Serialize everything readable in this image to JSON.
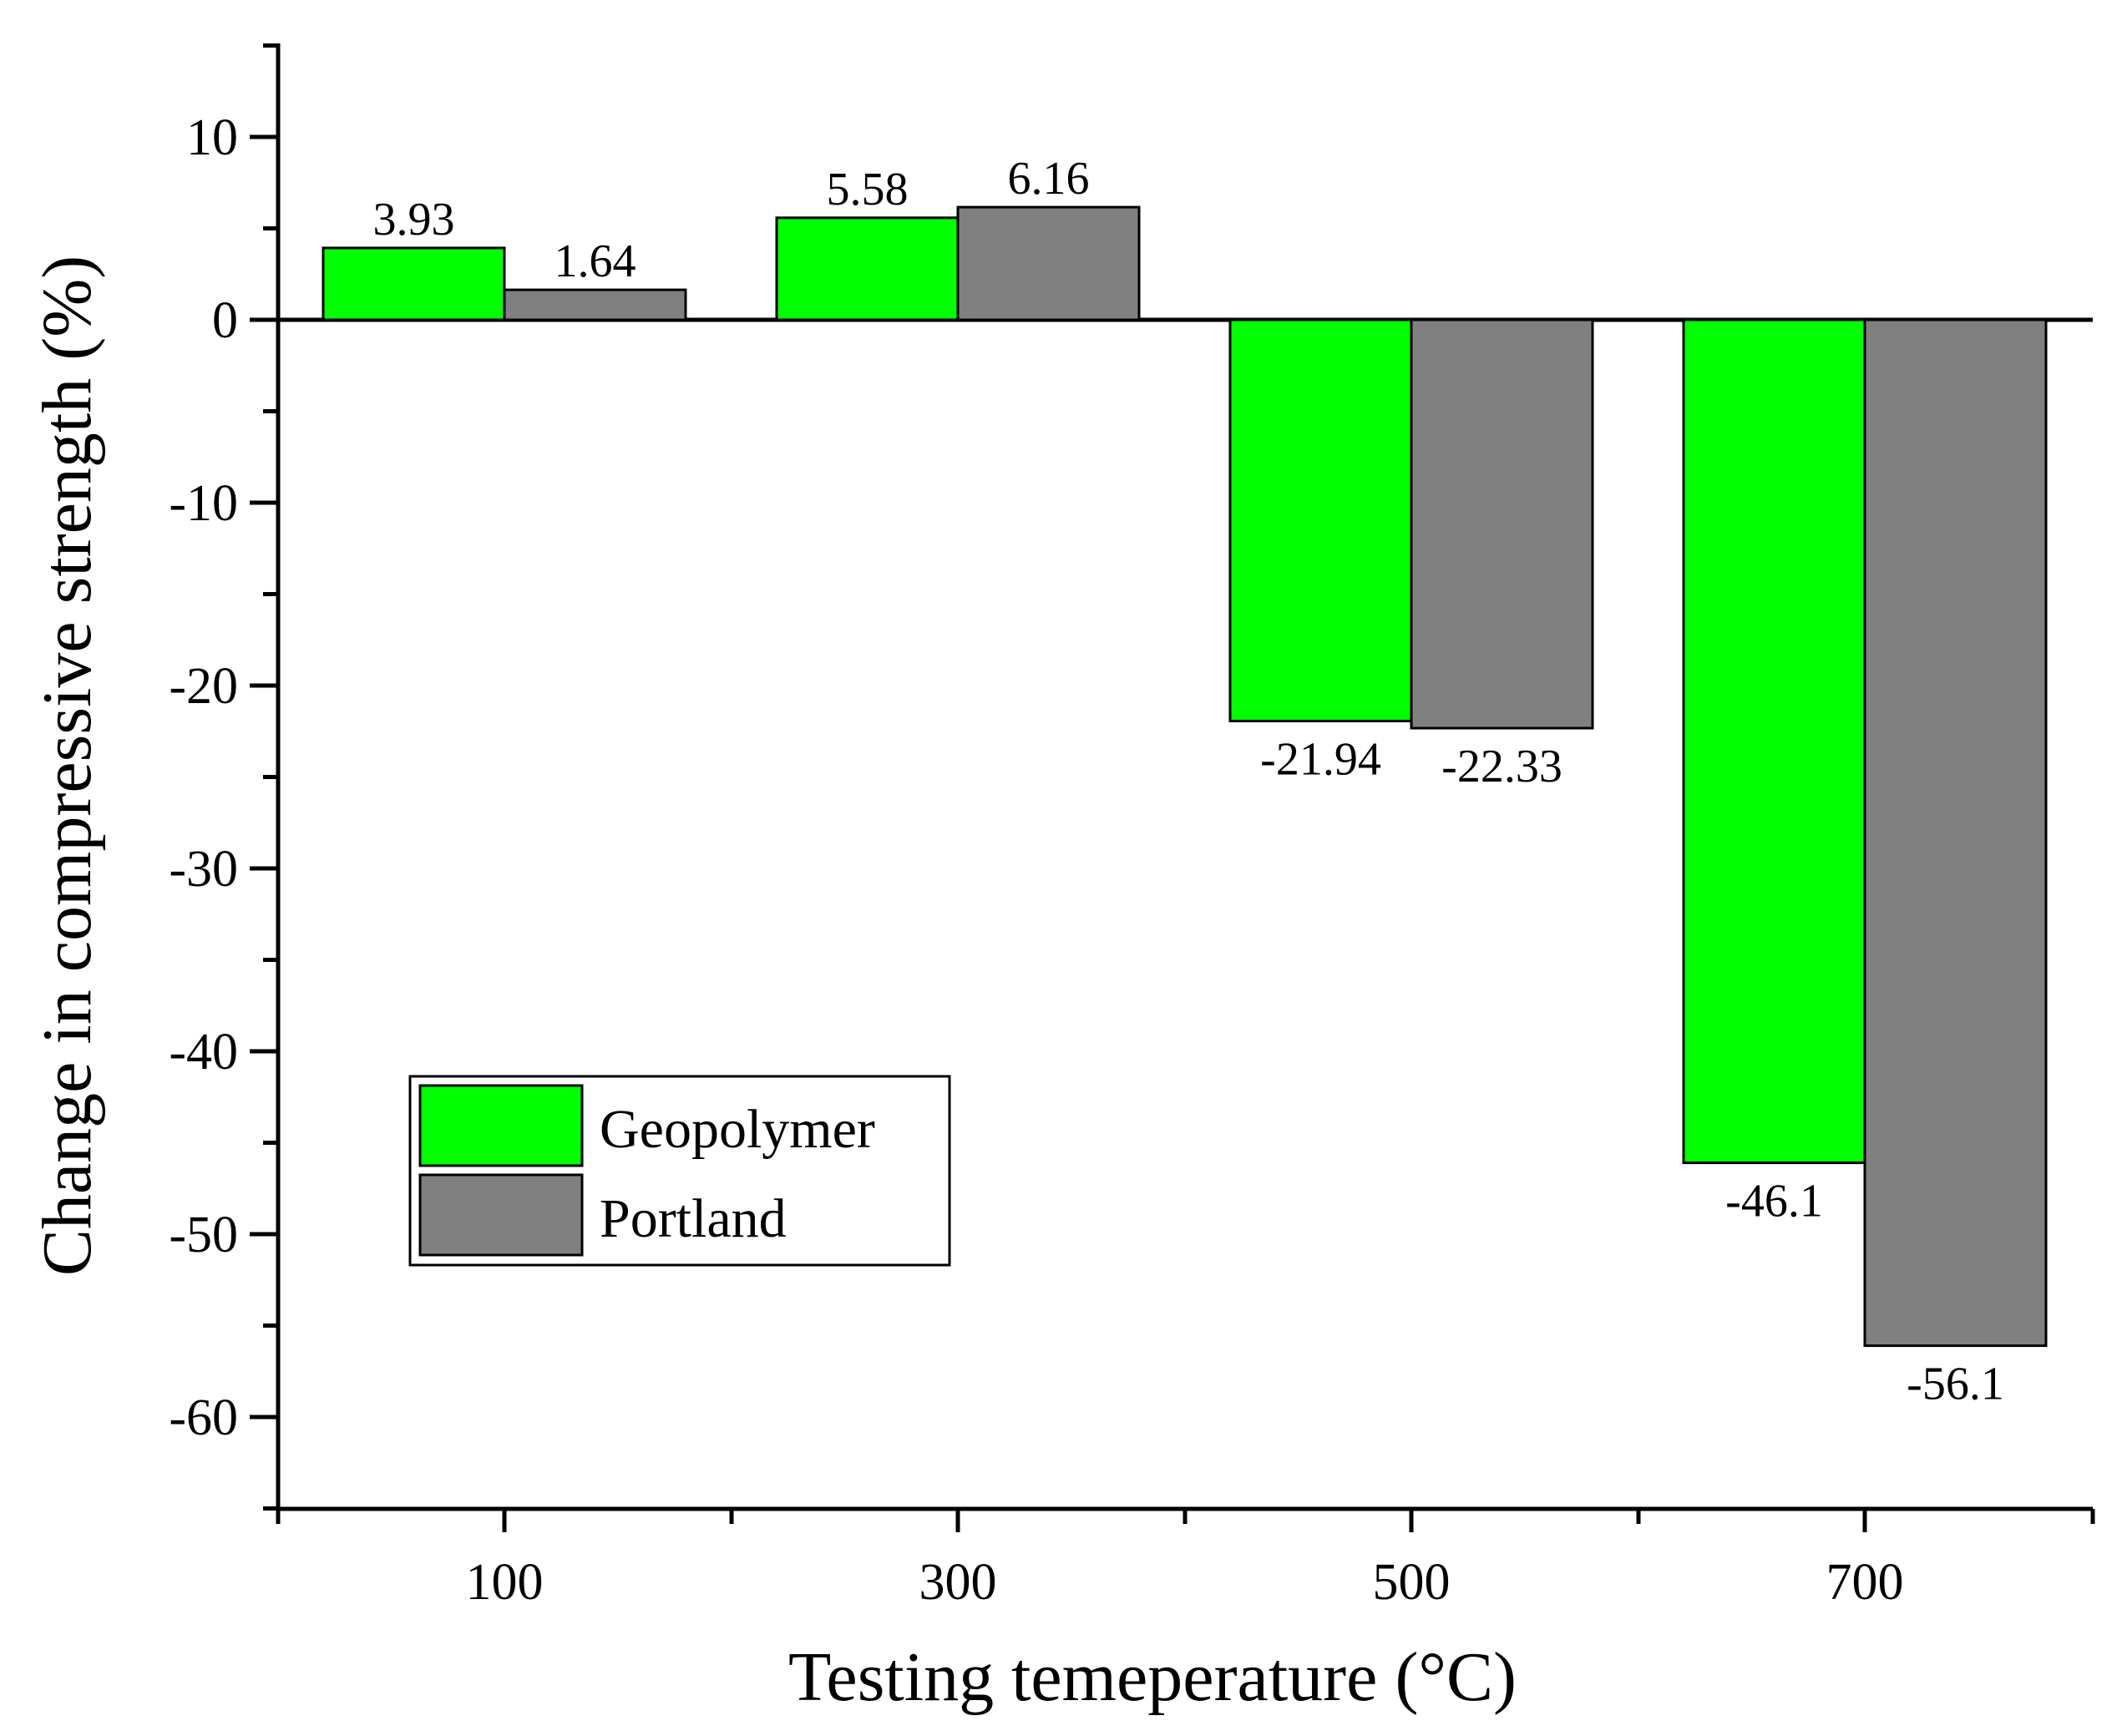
{
  "chart_data": {
    "type": "bar",
    "title": "",
    "xlabel": "Testing temeperature (°C)",
    "ylabel": "Change in compressive strength (%)",
    "categories": [
      "100",
      "300",
      "500",
      "700"
    ],
    "ylim": [
      -65,
      15
    ],
    "yticks": [
      10,
      0,
      -10,
      -20,
      -30,
      -40,
      -50,
      -60
    ],
    "yticks_labels": [
      "10",
      "0",
      "-10",
      "-20",
      "-30",
      "-40",
      "-50",
      "-60"
    ],
    "legend_position": "lower-left",
    "series": [
      {
        "name": "Geopolymer",
        "color": "#00ff00",
        "values": [
          3.93,
          5.58,
          -21.94,
          -46.1
        ],
        "labels": [
          "3.93",
          "5.58",
          "-21.94",
          "-46.1"
        ]
      },
      {
        "name": "Portland",
        "color": "#808080",
        "values": [
          1.64,
          6.16,
          -22.33,
          -56.1
        ],
        "labels": [
          "1.64",
          "6.16",
          "-22.33",
          "-56.1"
        ]
      }
    ]
  }
}
